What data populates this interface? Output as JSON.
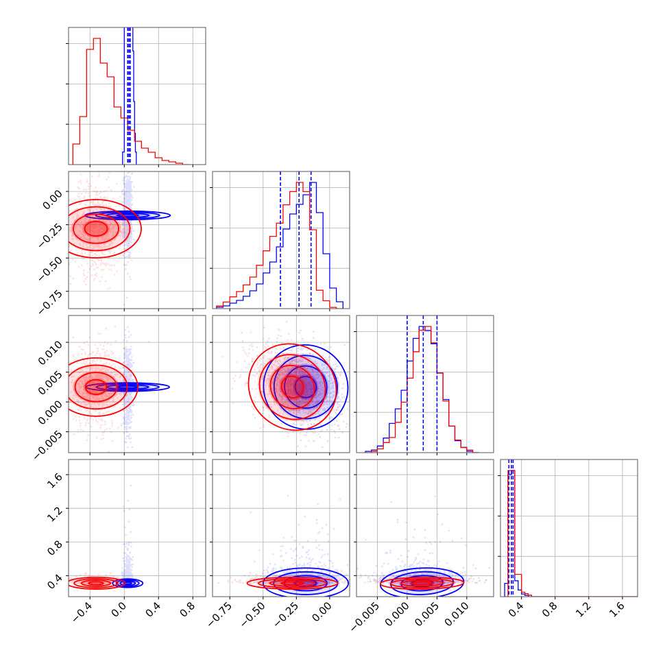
{
  "chart_data": {
    "type": "corner",
    "grid": true,
    "colors": {
      "red": "#ff0000",
      "blue": "#0000ff",
      "grid": "#b0b0b0",
      "frame": "#555555"
    },
    "params": [
      {
        "range": [
          -0.65,
          0.95
        ],
        "ticks": [
          -0.4,
          0.0,
          0.4,
          0.8
        ],
        "tick_labels": [
          "−0.4",
          "0.0",
          "0.4",
          "0.8"
        ]
      },
      {
        "range": [
          -0.88,
          0.15
        ],
        "ticks": [
          -0.75,
          -0.5,
          -0.25,
          0.0
        ],
        "tick_labels": [
          "−0.75",
          "−0.50",
          "−0.25",
          "0.00"
        ]
      },
      {
        "range": [
          -0.0085,
          0.0145
        ],
        "ticks": [
          -0.005,
          0.0,
          0.005,
          0.01
        ],
        "tick_labels": [
          "−0.005",
          "0.000",
          "0.005",
          "0.010"
        ]
      },
      {
        "range": [
          0.15,
          1.78
        ],
        "ticks": [
          0.4,
          0.8,
          1.2,
          1.6
        ],
        "tick_labels": [
          "0.4",
          "0.8",
          "1.2",
          "1.6"
        ]
      }
    ],
    "hist_1d": [
      {
        "edges": [
          -0.6,
          -0.52,
          -0.44,
          -0.36,
          -0.28,
          -0.2,
          -0.12,
          -0.04,
          0.04,
          0.12,
          0.2,
          0.28,
          0.36,
          0.44,
          0.52,
          0.6,
          0.68,
          0.76
        ],
        "red": [
          0.15,
          0.35,
          0.84,
          0.92,
          0.74,
          0.64,
          0.42,
          0.34,
          0.25,
          0.17,
          0.12,
          0.09,
          0.05,
          0.03,
          0.02,
          0.01,
          0.0
        ],
        "blue_edges": [
          -0.02,
          0.0,
          0.01,
          0.02,
          0.03,
          0.04,
          0.05,
          0.06,
          0.07,
          0.08,
          0.09,
          0.1,
          0.11,
          0.12,
          0.13,
          0.14
        ],
        "blue": [
          0.1,
          1.3,
          2.2,
          3.0,
          3.8,
          4.2,
          3.9,
          3.2,
          2.4,
          1.8,
          1.3,
          0.9,
          0.5,
          0.25,
          0.1
        ],
        "blue_quantiles": [
          0.04,
          0.055,
          0.07
        ]
      },
      {
        "edges": [
          -0.85,
          -0.8,
          -0.75,
          -0.7,
          -0.65,
          -0.6,
          -0.55,
          -0.5,
          -0.45,
          -0.4,
          -0.35,
          -0.3,
          -0.25,
          -0.2,
          -0.15,
          -0.1,
          -0.05,
          0.0,
          0.05,
          0.1
        ],
        "red": [
          0.02,
          0.05,
          0.09,
          0.13,
          0.18,
          0.24,
          0.33,
          0.44,
          0.55,
          0.65,
          0.79,
          0.89,
          0.96,
          0.89,
          0.6,
          0.14,
          0.06,
          0.01,
          0.0
        ],
        "blue": [
          0.01,
          0.02,
          0.04,
          0.06,
          0.09,
          0.13,
          0.18,
          0.26,
          0.34,
          0.45,
          0.58,
          0.69,
          0.76,
          0.83,
          0.92,
          0.7,
          0.4,
          0.15,
          0.05
        ],
        "blue_quantiles": [
          -0.37,
          -0.23,
          -0.14
        ]
      },
      {
        "edges": [
          -0.007,
          -0.006,
          -0.005,
          -0.004,
          -0.003,
          -0.002,
          -0.001,
          0.0,
          0.001,
          0.002,
          0.003,
          0.004,
          0.005,
          0.006,
          0.007,
          0.008,
          0.009,
          0.01,
          0.011,
          0.012
        ],
        "red": [
          0.0,
          0.01,
          0.03,
          0.08,
          0.12,
          0.24,
          0.4,
          0.59,
          0.8,
          0.97,
          1.0,
          0.87,
          0.63,
          0.41,
          0.21,
          0.1,
          0.04,
          0.02,
          0.0
        ],
        "blue": [
          0.01,
          0.02,
          0.05,
          0.11,
          0.22,
          0.33,
          0.47,
          0.69,
          0.86,
          0.95,
          0.92,
          0.82,
          0.6,
          0.4,
          0.2,
          0.09,
          0.04,
          0.01,
          0.0
        ],
        "blue_quantiles": [
          0.0,
          0.0027,
          0.005
        ]
      },
      {
        "edges": [
          0.2,
          0.24,
          0.28,
          0.32,
          0.36,
          0.4,
          0.44,
          0.48,
          0.52,
          0.56,
          0.6,
          0.7,
          0.8,
          1.0,
          1.2,
          1.4,
          1.6,
          1.78
        ],
        "red": [
          0.0,
          0.85,
          0.85,
          0.15,
          0.15,
          0.03,
          0.02,
          0.01,
          0.0,
          0.0,
          0.0,
          0.0,
          0.0,
          0.0,
          0.0,
          0.0,
          0.0
        ],
        "blue": [
          0.1,
          0.92,
          0.95,
          0.12,
          0.05,
          0.02,
          0.01,
          0.0,
          0.0,
          0.0,
          0.0,
          0.0,
          0.0,
          0.0,
          0.0,
          0.0,
          0.0
        ],
        "blue_quantiles": [
          0.25,
          0.28,
          0.3
        ]
      }
    ],
    "distributions": {
      "red": {
        "mean": [
          -0.33,
          -0.28,
          0.0025,
          0.31
        ],
        "std": [
          0.17,
          0.17,
          0.0035,
          0.035
        ],
        "corr": [
          [
            1,
            0,
            0,
            0
          ],
          [
            0,
            1,
            -0.4,
            0
          ],
          [
            0,
            -0.4,
            1,
            0.1
          ],
          [
            0,
            0,
            0.1,
            1
          ]
        ]
      },
      "blue": {
        "mean": [
          0.04,
          -0.18,
          0.0025,
          0.31
        ],
        "std": [
          0.025,
          0.16,
          0.0035,
          0.09
        ],
        "corr": [
          [
            1,
            0,
            0,
            0
          ],
          [
            0,
            1,
            -0.35,
            0
          ],
          [
            0,
            -0.35,
            1,
            0.1
          ],
          [
            0,
            0,
            0.1,
            1
          ]
        ]
      }
    }
  }
}
